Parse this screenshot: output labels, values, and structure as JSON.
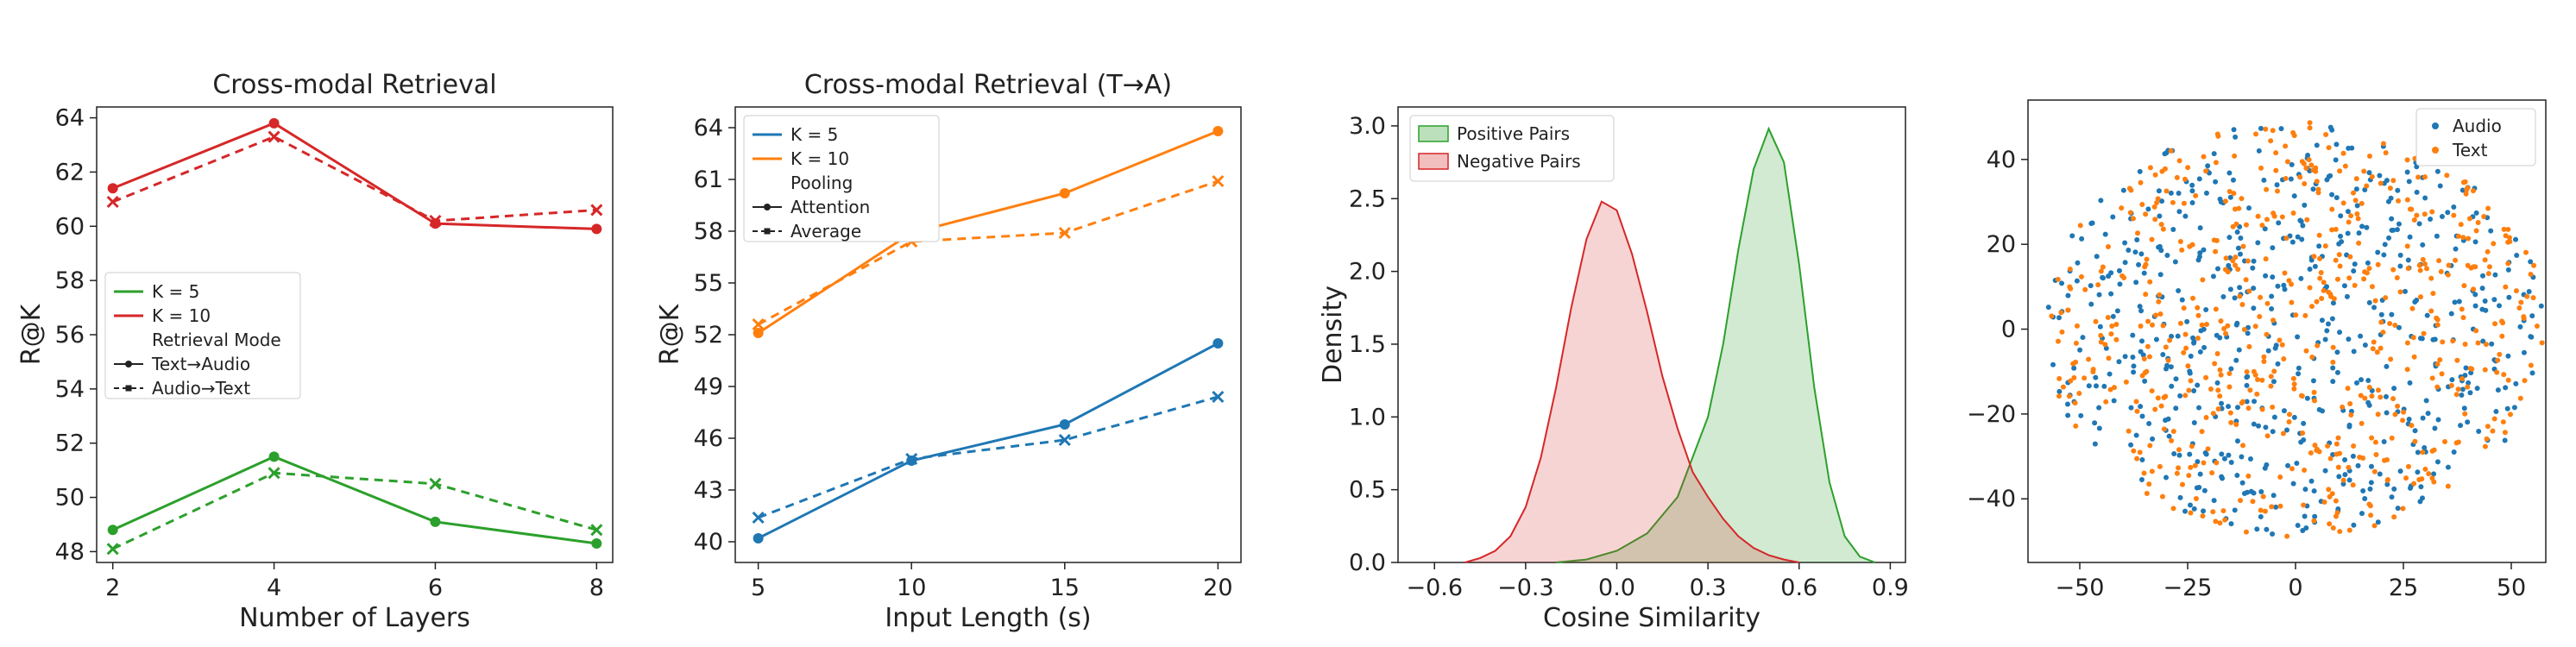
{
  "chart_data": [
    {
      "type": "line",
      "title": "Cross-modal Retrieval",
      "xlabel": "Number of Layers",
      "ylabel": "R@K",
      "x": [
        2,
        4,
        6,
        8
      ],
      "xticks": [
        2,
        4,
        6,
        8
      ],
      "xticklabels": [
        "2",
        "4",
        "6",
        "8"
      ],
      "yticks": [
        48,
        50,
        52,
        54,
        56,
        58,
        60,
        62,
        64
      ],
      "yticklabels": [
        "48",
        "50",
        "52",
        "54",
        "56",
        "58",
        "60",
        "62",
        "64"
      ],
      "xlim": [
        1.8,
        8.2
      ],
      "ylim": [
        47.6,
        64.4
      ],
      "legend_placement": "center-left",
      "legend_entries": [
        {
          "label": "K = 5",
          "kind": "color",
          "color": "#2ca02c"
        },
        {
          "label": "K = 10",
          "kind": "color",
          "color": "#d62728"
        },
        {
          "label": "Retrieval Mode",
          "kind": "header"
        },
        {
          "label": "Text→Audio",
          "kind": "solid"
        },
        {
          "label": "Audio→Text",
          "kind": "dashed"
        }
      ],
      "series": [
        {
          "color": "#d62728",
          "style": "solid",
          "marker": "circle",
          "values": [
            61.4,
            63.8,
            60.1,
            59.9
          ]
        },
        {
          "color": "#d62728",
          "style": "dashed",
          "marker": "x",
          "values": [
            60.9,
            63.3,
            60.2,
            60.6
          ]
        },
        {
          "color": "#2ca02c",
          "style": "solid",
          "marker": "circle",
          "values": [
            48.8,
            51.5,
            49.1,
            48.3
          ]
        },
        {
          "color": "#2ca02c",
          "style": "dashed",
          "marker": "x",
          "values": [
            48.1,
            50.9,
            50.5,
            48.8
          ]
        }
      ]
    },
    {
      "type": "line",
      "title": "Cross-modal Retrieval (T→A)",
      "xlabel": "Input Length (s)",
      "ylabel": "R@K",
      "x": [
        5,
        10,
        15,
        20
      ],
      "xticks": [
        5,
        10,
        15,
        20
      ],
      "xticklabels": [
        "5",
        "10",
        "15",
        "20"
      ],
      "yticks": [
        40,
        43,
        46,
        49,
        52,
        55,
        58,
        61,
        64
      ],
      "yticklabels": [
        "40",
        "43",
        "46",
        "49",
        "52",
        "55",
        "58",
        "61",
        "64"
      ],
      "xlim": [
        4.25,
        20.75
      ],
      "ylim": [
        38.8,
        65.2
      ],
      "legend_placement": "top-left",
      "legend_entries": [
        {
          "label": "K = 5",
          "kind": "color",
          "color": "#1f77b4"
        },
        {
          "label": "K = 10",
          "kind": "color",
          "color": "#ff7f0e"
        },
        {
          "label": "Pooling",
          "kind": "header"
        },
        {
          "label": "Attention",
          "kind": "solid"
        },
        {
          "label": "Average",
          "kind": "dashed"
        }
      ],
      "series": [
        {
          "color": "#ff7f0e",
          "style": "solid",
          "marker": "circle",
          "values": [
            52.1,
            57.9,
            60.2,
            63.8
          ]
        },
        {
          "color": "#ff7f0e",
          "style": "dashed",
          "marker": "x",
          "values": [
            52.6,
            57.4,
            57.9,
            60.9
          ]
        },
        {
          "color": "#1f77b4",
          "style": "solid",
          "marker": "circle",
          "values": [
            40.2,
            44.7,
            46.8,
            51.5
          ]
        },
        {
          "color": "#1f77b4",
          "style": "dashed",
          "marker": "x",
          "values": [
            41.4,
            44.8,
            45.9,
            48.4
          ]
        }
      ]
    },
    {
      "type": "area",
      "title": "",
      "xlabel": "Cosine Similarity",
      "ylabel": "Density",
      "xticks": [
        -0.6,
        -0.3,
        0.0,
        0.3,
        0.6,
        0.9
      ],
      "xticklabels": [
        "−0.6",
        "−0.3",
        "0.0",
        "0.3",
        "0.6",
        "0.9"
      ],
      "yticks": [
        0.0,
        0.5,
        1.0,
        1.5,
        2.0,
        2.5,
        3.0
      ],
      "yticklabels": [
        "0.0",
        "0.5",
        "1.0",
        "1.5",
        "2.0",
        "2.5",
        "3.0"
      ],
      "xlim": [
        -0.72,
        0.95
      ],
      "ylim": [
        0,
        3.13
      ],
      "legend_placement": "top-left",
      "series": [
        {
          "name": "Positive Pairs",
          "fill": "#2ca02c",
          "line": "#2ca02c",
          "fill_opacity": 0.22,
          "x": [
            -0.2,
            -0.1,
            0.0,
            0.1,
            0.2,
            0.3,
            0.35,
            0.4,
            0.45,
            0.5,
            0.55,
            0.6,
            0.65,
            0.7,
            0.75,
            0.8,
            0.85
          ],
          "values": [
            0.0,
            0.02,
            0.08,
            0.2,
            0.45,
            1.0,
            1.5,
            2.15,
            2.7,
            2.98,
            2.75,
            2.05,
            1.2,
            0.55,
            0.18,
            0.04,
            0.0
          ]
        },
        {
          "name": "Negative Pairs",
          "fill": "#d62728",
          "line": "#d62728",
          "fill_opacity": 0.2,
          "x": [
            -0.5,
            -0.45,
            -0.4,
            -0.35,
            -0.3,
            -0.25,
            -0.2,
            -0.15,
            -0.1,
            -0.05,
            0.0,
            0.05,
            0.1,
            0.15,
            0.2,
            0.25,
            0.3,
            0.35,
            0.4,
            0.45,
            0.5,
            0.55,
            0.6
          ],
          "values": [
            0.0,
            0.03,
            0.08,
            0.18,
            0.38,
            0.72,
            1.2,
            1.75,
            2.22,
            2.48,
            2.42,
            2.12,
            1.72,
            1.28,
            0.92,
            0.62,
            0.45,
            0.3,
            0.18,
            0.1,
            0.05,
            0.02,
            0.0
          ]
        }
      ]
    },
    {
      "type": "scatter",
      "title": "",
      "xlabel": "",
      "ylabel": "",
      "xticks": [
        -50,
        -25,
        0,
        25,
        50
      ],
      "xticklabels": [
        "−50",
        "−25",
        "0",
        "25",
        "50"
      ],
      "yticks": [
        -40,
        -20,
        0,
        20,
        40
      ],
      "yticklabels": [
        "−40",
        "−20",
        "0",
        "20",
        "40"
      ],
      "xlim": [
        -62,
        58
      ],
      "ylim": [
        -55,
        54
      ],
      "legend_placement": "top-right",
      "series": [
        {
          "name": "Audio",
          "color": "#1f77b4",
          "n": 600,
          "seed": 7
        },
        {
          "name": "Text",
          "color": "#ff7f0e",
          "n": 600,
          "seed": 13
        }
      ]
    }
  ]
}
